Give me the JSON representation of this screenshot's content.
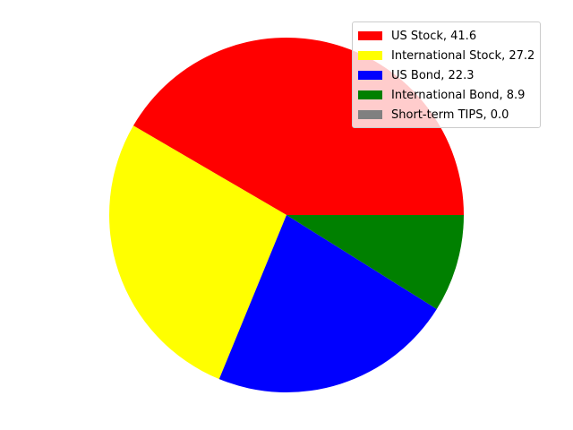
{
  "chart_data": {
    "type": "pie",
    "title": "",
    "slices": [
      {
        "label": "US Stock",
        "value": 41.6,
        "color": "#ff0000"
      },
      {
        "label": "International Stock",
        "value": 27.2,
        "color": "#ffff00"
      },
      {
        "label": "US Bond",
        "value": 22.3,
        "color": "#0000ff"
      },
      {
        "label": "International Bond",
        "value": 8.9,
        "color": "#008000"
      },
      {
        "label": "Short-term TIPS",
        "value": 0.0,
        "color": "#808080"
      }
    ],
    "legend": {
      "placement": "top-right",
      "entries": [
        "US Stock, 41.6",
        "International Stock, 27.2",
        "US Bond, 22.3",
        "International Bond, 8.9",
        "Short-term TIPS, 0.0"
      ]
    }
  }
}
